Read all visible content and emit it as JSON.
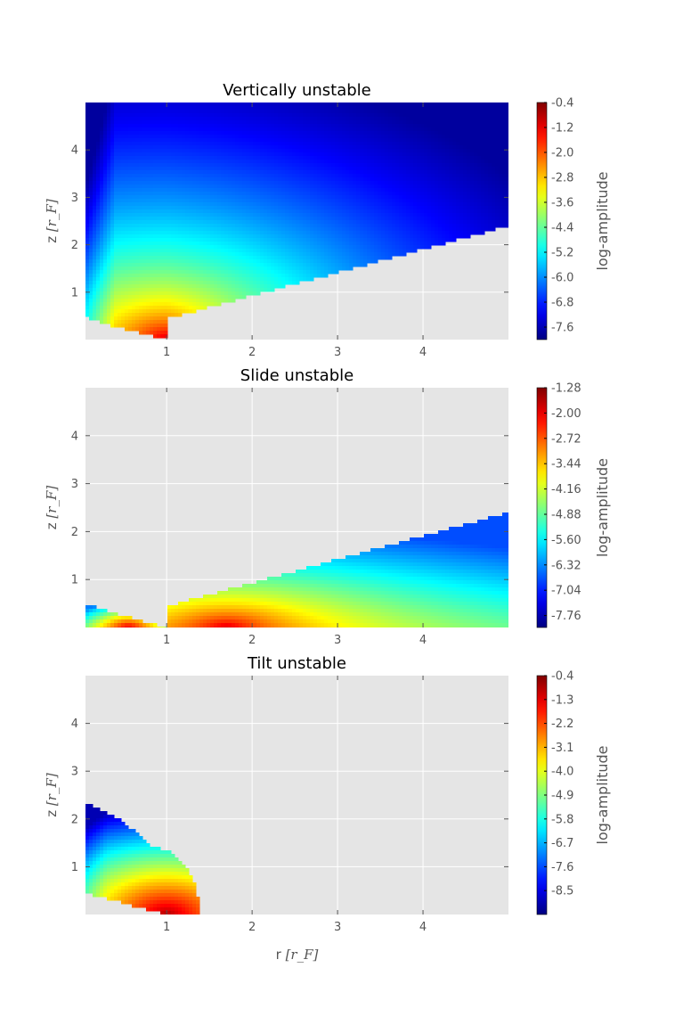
{
  "chart_data": [
    {
      "type": "heatmap",
      "title": "Vertically unstable",
      "xlabel": "",
      "ylabel": "z",
      "ylabel_unit": "[r_F]",
      "xlim": [
        0.05,
        5.0
      ],
      "ylim": [
        0.0,
        5.0
      ],
      "xticks": [
        "1",
        "2",
        "3",
        "4"
      ],
      "yticks": [
        "1",
        "2",
        "3",
        "4"
      ],
      "grid": true,
      "region": "full",
      "colorbar": {
        "label": "log-amplitude",
        "ticks": [
          "-0.4",
          "-1.2",
          "-2.0",
          "-2.8",
          "-3.6",
          "-4.4",
          "-5.2",
          "-6.0",
          "-6.8",
          "-7.6"
        ],
        "min": -8.0,
        "max": -0.4
      }
    },
    {
      "type": "heatmap",
      "title": "Slide unstable",
      "xlabel": "",
      "ylabel": "z",
      "ylabel_unit": "[r_F]",
      "xlim": [
        0.05,
        5.0
      ],
      "ylim": [
        0.0,
        5.0
      ],
      "xticks": [
        "1",
        "2",
        "3",
        "4"
      ],
      "yticks": [
        "1",
        "2",
        "3",
        "4"
      ],
      "grid": true,
      "region": "wedge",
      "colorbar": {
        "label": "log-amplitude",
        "ticks": [
          "-1.28",
          "-2.00",
          "-2.72",
          "-3.44",
          "-4.16",
          "-4.88",
          "-5.60",
          "-6.32",
          "-7.04",
          "-7.76"
        ],
        "min": -8.1,
        "max": -1.28
      }
    },
    {
      "type": "heatmap",
      "title": "Tilt unstable",
      "xlabel": "r",
      "xlabel_unit": "[r_F]",
      "ylabel": "z",
      "ylabel_unit": "[r_F]",
      "xlim": [
        0.05,
        5.0
      ],
      "ylim": [
        0.0,
        5.0
      ],
      "xticks": [
        "1",
        "2",
        "3",
        "4"
      ],
      "yticks": [
        "1",
        "2",
        "3",
        "4"
      ],
      "grid": true,
      "region": "lobe",
      "colorbar": {
        "label": "log-amplitude",
        "ticks": [
          "-0.4",
          "-1.3",
          "-2.2",
          "-3.1",
          "-4.0",
          "-4.9",
          "-5.8",
          "-6.7",
          "-7.6",
          "-8.5"
        ],
        "min": -9.4,
        "max": -0.4
      }
    }
  ]
}
